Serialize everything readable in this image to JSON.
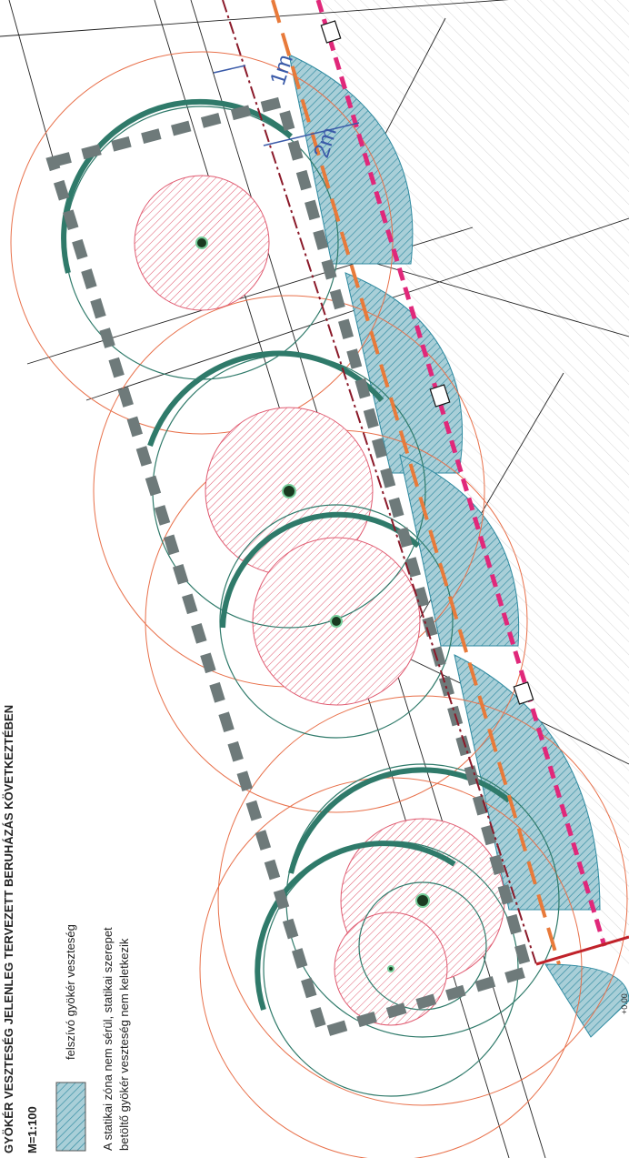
{
  "title": "GYÖKÉR VESZTESÉG JELENLEG TERVEZETT BERUHÁZÁS KÖVETKEZTÉBEN",
  "scale": "M=1:100",
  "legend": {
    "item": "felszívó gyökér veszteség",
    "note": [
      "A statikai zóna nem sérül, statikai szerepet",
      "betöltő gyökér veszteség nem keletkezik"
    ]
  },
  "dimensions": [
    "1m",
    "2m"
  ],
  "level": "+0.00"
}
